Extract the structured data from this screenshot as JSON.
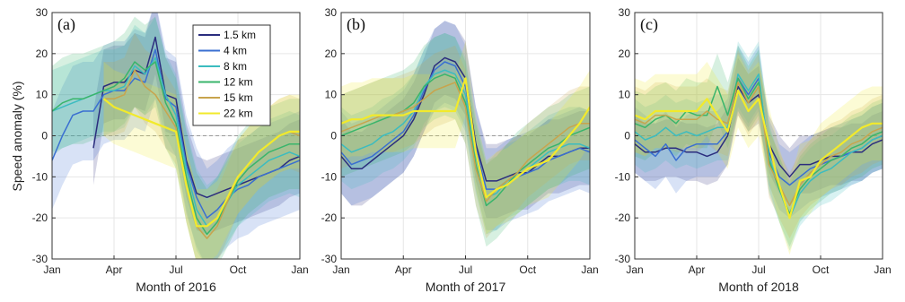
{
  "figure": {
    "ylabel": "Speed anomaly (%)",
    "yticks": [
      -30,
      -20,
      -10,
      0,
      10,
      20,
      30
    ],
    "xtick_labels": [
      "Jan",
      "Apr",
      "Jul",
      "Oct",
      "Jan"
    ]
  },
  "chart_data": [
    {
      "type": "line",
      "panel": "(a)",
      "xlabel": "Month of 2016",
      "xlim": [
        0,
        12
      ],
      "ylim": [
        -30,
        30
      ],
      "grid": true,
      "legend": "top-right",
      "x": [
        0,
        0.5,
        1,
        1.5,
        2,
        2.5,
        3,
        3.5,
        4,
        4.5,
        5,
        5.5,
        6,
        6.5,
        7,
        7.5,
        8,
        8.5,
        9,
        9.5,
        10,
        10.5,
        11,
        11.5,
        12
      ],
      "series": [
        {
          "name": "1.5 km",
          "color": "#2b2d7e",
          "values": [
            null,
            null,
            null,
            null,
            -3,
            12,
            13,
            13,
            16,
            15,
            24,
            10,
            9,
            -6,
            -14,
            -15,
            -14,
            -13,
            -12,
            -11,
            -10,
            -9,
            -8,
            -6,
            -5
          ],
          "spread": 9
        },
        {
          "name": "4 km",
          "color": "#3a6fd1",
          "values": [
            -6,
            0,
            5,
            6,
            6,
            10,
            11,
            11,
            14,
            13,
            21,
            9,
            7,
            -7,
            -15,
            -20,
            -18,
            -15,
            -13,
            -12,
            -10,
            -9,
            -8,
            -7,
            -6
          ],
          "spread": 12
        },
        {
          "name": "8 km",
          "color": "#3bbcc0",
          "values": [
            6,
            7,
            8,
            9,
            10,
            11,
            11,
            12,
            17,
            15,
            19,
            10,
            5,
            -8,
            -18,
            -22,
            -20,
            -16,
            -12,
            -10,
            -8,
            -6,
            -5,
            -4,
            -5
          ],
          "spread": 10
        },
        {
          "name": "12 km",
          "color": "#39b56b",
          "values": [
            6,
            8,
            9,
            9,
            10,
            11,
            12,
            14,
            18,
            16,
            18,
            8,
            3,
            -10,
            -20,
            -24,
            -21,
            -16,
            -11,
            -8,
            -6,
            -4,
            -3,
            -2,
            -2
          ],
          "spread": 11
        },
        {
          "name": "15 km",
          "color": "#c8a44d",
          "values": [
            null,
            null,
            null,
            null,
            null,
            9,
            9,
            10,
            16,
            12,
            10,
            6,
            2,
            -12,
            -22,
            -25,
            -22,
            -16,
            -10,
            -7,
            -4,
            -2,
            0,
            1,
            0
          ],
          "spread": 9
        },
        {
          "name": "22 km",
          "color": "#f2ea2b",
          "values": [
            null,
            null,
            null,
            null,
            null,
            9,
            7,
            6,
            5,
            4,
            3,
            2,
            1,
            -12,
            -22,
            -22,
            -20,
            -15,
            -10,
            -7,
            -4,
            -2,
            0,
            1,
            1
          ],
          "spread": 9
        }
      ]
    },
    {
      "type": "line",
      "panel": "(b)",
      "xlabel": "Month of 2017",
      "xlim": [
        0,
        12
      ],
      "ylim": [
        -30,
        30
      ],
      "grid": true,
      "x": [
        0,
        0.5,
        1,
        1.5,
        2,
        2.5,
        3,
        3.5,
        4,
        4.5,
        5,
        5.5,
        6,
        6.5,
        7,
        7.5,
        8,
        8.5,
        9,
        9.5,
        10,
        10.5,
        11,
        11.5,
        12
      ],
      "series": [
        {
          "name": "1.5 km",
          "color": "#2b2d7e",
          "values": [
            -5,
            -8,
            -8,
            -6,
            -4,
            -2,
            0,
            4,
            10,
            17,
            19,
            18,
            14,
            -2,
            -11,
            -11,
            -10,
            -9,
            -9,
            -7,
            -5,
            -5,
            -4,
            -3,
            -3
          ],
          "spread": 9
        },
        {
          "name": "4 km",
          "color": "#3a6fd1",
          "values": [
            -4,
            -7,
            -6,
            -5,
            -3,
            -1,
            1,
            5,
            11,
            16,
            18,
            17,
            12,
            -3,
            -13,
            -13,
            -11,
            -10,
            -9,
            -8,
            -6,
            -5,
            -4,
            -3,
            -4
          ],
          "spread": 10
        },
        {
          "name": "8 km",
          "color": "#3bbcc0",
          "values": [
            -2,
            -4,
            -3,
            -2,
            0,
            1,
            3,
            6,
            12,
            15,
            16,
            15,
            10,
            -5,
            -15,
            -14,
            -11,
            -10,
            -8,
            -6,
            -4,
            -3,
            -2,
            -2,
            -3
          ],
          "spread": 9
        },
        {
          "name": "12 km",
          "color": "#39b56b",
          "values": [
            0,
            1,
            2,
            3,
            4,
            5,
            6,
            8,
            12,
            14,
            15,
            14,
            8,
            -7,
            -17,
            -15,
            -12,
            -9,
            -7,
            -5,
            -3,
            -2,
            0,
            1,
            2
          ],
          "spread": 10
        },
        {
          "name": "15 km",
          "color": "#c8a44d",
          "values": [
            1,
            2,
            3,
            4,
            5,
            5,
            6,
            7,
            9,
            11,
            12,
            13,
            7,
            -8,
            -16,
            -13,
            -11,
            -9,
            -6,
            -4,
            -2,
            0,
            2,
            3,
            3
          ],
          "spread": 9
        },
        {
          "name": "22 km",
          "color": "#f2ea2b",
          "values": [
            3,
            4,
            4,
            5,
            5,
            5,
            5,
            6,
            6,
            6,
            6,
            6,
            14,
            -4,
            -15,
            -13,
            -12,
            -10,
            -8,
            -7,
            -6,
            -3,
            0,
            3,
            7
          ],
          "spread": 9
        }
      ]
    },
    {
      "type": "line",
      "panel": "(c)",
      "xlabel": "Month of 2018",
      "xlim": [
        0,
        12
      ],
      "ylim": [
        -30,
        30
      ],
      "grid": true,
      "x": [
        0,
        0.5,
        1,
        1.5,
        2,
        2.5,
        3,
        3.5,
        4,
        4.5,
        5,
        5.5,
        6,
        6.5,
        7,
        7.5,
        8,
        8.5,
        9,
        9.5,
        10,
        10.5,
        11,
        11.5,
        12
      ],
      "series": [
        {
          "name": "1.5 km",
          "color": "#2b2d7e",
          "values": [
            -2,
            -4,
            -4,
            -3,
            -3,
            -4,
            -4,
            -5,
            -4,
            0,
            12,
            8,
            10,
            -2,
            -7,
            -10,
            -7,
            -7,
            -6,
            -5,
            -5,
            -4,
            -4,
            -2,
            -1
          ],
          "spread": 7
        },
        {
          "name": "4 km",
          "color": "#3a6fd1",
          "values": [
            -1,
            -3,
            -5,
            -2,
            -6,
            -3,
            -2,
            -2,
            -2,
            1,
            14,
            10,
            14,
            -4,
            -10,
            -12,
            -10,
            -8,
            -7,
            -6,
            -5,
            -4,
            -3,
            -1,
            0
          ],
          "spread": 8
        },
        {
          "name": "8 km",
          "color": "#3bbcc0",
          "values": [
            1,
            -1,
            0,
            2,
            0,
            1,
            0,
            1,
            2,
            2,
            15,
            11,
            15,
            -5,
            -13,
            -20,
            -14,
            -11,
            -9,
            -8,
            -6,
            -4,
            -3,
            -1,
            0
          ],
          "spread": 8
        },
        {
          "name": "12 km",
          "color": "#39b56b",
          "values": [
            3,
            2,
            4,
            5,
            3,
            6,
            5,
            5,
            12,
            5,
            14,
            9,
            13,
            -6,
            -13,
            -19,
            -13,
            -10,
            -8,
            -6,
            -5,
            -3,
            -2,
            0,
            1
          ],
          "spread": 8
        },
        {
          "name": "15 km",
          "color": "#c8a44d",
          "values": [
            4,
            3,
            5,
            5,
            4,
            4,
            4,
            6,
            4,
            3,
            13,
            8,
            12,
            -7,
            -12,
            -17,
            -12,
            -9,
            -7,
            -5,
            -4,
            -2,
            -1,
            1,
            2
          ],
          "spread": 8
        },
        {
          "name": "22 km",
          "color": "#f2ea2b",
          "values": [
            5,
            4,
            6,
            6,
            6,
            6,
            6,
            9,
            5,
            1,
            11,
            6,
            9,
            -2,
            -12,
            -20,
            -11,
            -10,
            -6,
            -4,
            -2,
            0,
            2,
            3,
            3
          ],
          "spread": 9
        }
      ]
    }
  ]
}
